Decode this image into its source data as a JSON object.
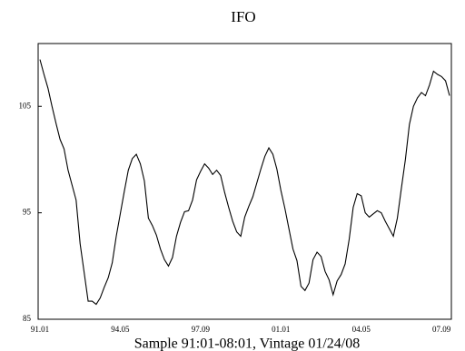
{
  "chart_data": {
    "type": "line",
    "title": "IFO",
    "caption": "Sample 91:01-08:01, Vintage 01/24/08",
    "x": [
      "91.01",
      "91.03",
      "91.05",
      "91.07",
      "91.09",
      "91.11",
      "92.01",
      "92.03",
      "92.05",
      "92.07",
      "92.09",
      "92.11",
      "93.01",
      "93.03",
      "93.05",
      "93.07",
      "93.09",
      "93.11",
      "94.01",
      "94.03",
      "94.05",
      "94.07",
      "94.09",
      "94.11",
      "95.01",
      "95.03",
      "95.05",
      "95.07",
      "95.09",
      "95.11",
      "96.01",
      "96.03",
      "96.05",
      "96.07",
      "96.09",
      "96.11",
      "97.01",
      "97.03",
      "97.05",
      "97.07",
      "97.09",
      "97.11",
      "98.01",
      "98.03",
      "98.05",
      "98.07",
      "98.09",
      "98.11",
      "99.01",
      "99.03",
      "99.05",
      "99.07",
      "99.09",
      "99.11",
      "00.01",
      "00.03",
      "00.05",
      "00.07",
      "00.09",
      "00.11",
      "01.01",
      "01.03",
      "01.05",
      "01.07",
      "01.09",
      "01.11",
      "02.01",
      "02.03",
      "02.05",
      "02.07",
      "02.09",
      "02.11",
      "03.01",
      "03.03",
      "03.05",
      "03.07",
      "03.09",
      "03.11",
      "04.01",
      "04.03",
      "04.05",
      "04.07",
      "04.09",
      "04.11",
      "05.01",
      "05.03",
      "05.05",
      "05.07",
      "05.09",
      "05.11",
      "06.01",
      "06.03",
      "06.05",
      "06.07",
      "06.09",
      "06.11",
      "07.01",
      "07.03",
      "07.05",
      "07.07",
      "07.09",
      "07.11",
      "08.01"
    ],
    "series": [
      {
        "name": "IFO",
        "color": "#000000",
        "values": [
          109.4,
          108,
          106.7,
          105,
          103.4,
          101.9,
          101,
          99,
          97.6,
          96.2,
          92.1,
          89.4,
          86.7,
          86.7,
          86.4,
          87,
          88,
          88.9,
          90.3,
          92.8,
          94.9,
          97,
          99,
          100.1,
          100.5,
          99.6,
          98,
          94.5,
          93.8,
          92.9,
          91.6,
          90.6,
          90,
          90.8,
          92.8,
          94.1,
          95.1,
          95.2,
          96.2,
          98.1,
          98.9,
          99.6,
          99.2,
          98.6,
          99,
          98.5,
          96.9,
          95.5,
          94.2,
          93.2,
          92.8,
          94.6,
          95.6,
          96.5,
          97.8,
          99.1,
          100.3,
          101.1,
          100.5,
          99.1,
          97.1,
          95.4,
          93.5,
          91.6,
          90.5,
          88.1,
          87.7,
          88.4,
          90.6,
          91.3,
          90.9,
          89.5,
          88.7,
          87.3,
          88.6,
          89.2,
          90.2,
          92.5,
          95.5,
          96.8,
          96.6,
          95,
          94.6,
          94.9,
          95.2,
          95,
          94.2,
          93.5,
          92.8,
          94.5,
          97.3,
          100,
          103.3,
          105,
          105.8,
          106.3,
          106,
          107,
          108.3,
          108,
          107.8,
          107.4,
          106
        ]
      }
    ],
    "xticks": [
      "91.01",
      "94.05",
      "97.09",
      "01.01",
      "04.05",
      "07.09"
    ],
    "ylim": [
      85,
      110.9
    ],
    "yticks": [
      85,
      95,
      105
    ],
    "grid": false
  }
}
